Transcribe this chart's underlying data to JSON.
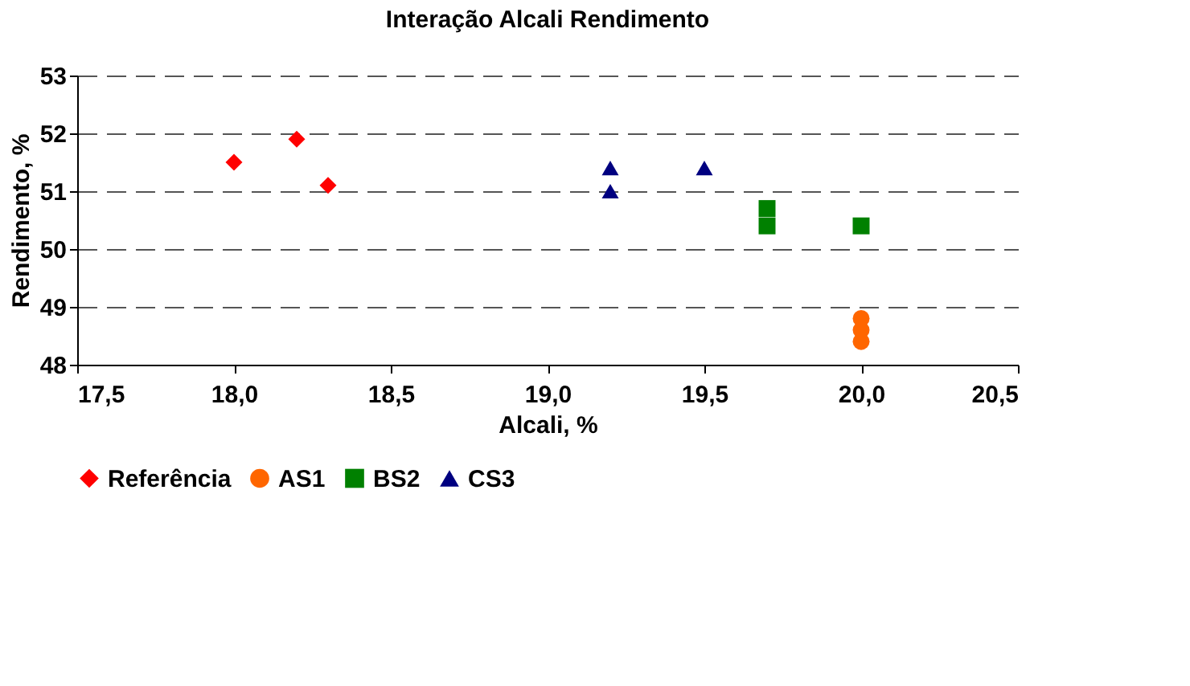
{
  "chart_data": {
    "type": "scatter",
    "title": "Interação Alcali Rendimento",
    "xlabel": "Alcali, %",
    "ylabel": "Rendimento, %",
    "xlim": [
      17.5,
      20.5
    ],
    "xticks": [
      {
        "value": 17.5,
        "label": "17,5"
      },
      {
        "value": 18.0,
        "label": "18,0"
      },
      {
        "value": 18.5,
        "label": "18,5"
      },
      {
        "value": 19.0,
        "label": "19,0"
      },
      {
        "value": 19.5,
        "label": "19,5"
      },
      {
        "value": 20.0,
        "label": "20,0"
      },
      {
        "value": 20.5,
        "label": "20,5"
      }
    ],
    "ylim": [
      48,
      53
    ],
    "yticks": [
      48,
      49,
      50,
      51,
      52,
      53
    ],
    "grid": "y",
    "legend": "bottom",
    "series": [
      {
        "name": "Referência",
        "color": "#ff0000",
        "marker": "diamond",
        "x": [
          18.0,
          18.2,
          18.3
        ],
        "values": [
          51.5,
          51.9,
          51.1
        ]
      },
      {
        "name": "AS1",
        "color": "#ff6600",
        "marker": "circle",
        "x": [
          20.0,
          20.0,
          20.0
        ],
        "values": [
          48.8,
          48.6,
          48.4
        ]
      },
      {
        "name": "BS2",
        "color": "#008000",
        "marker": "square",
        "x": [
          19.7,
          19.7,
          20.0
        ],
        "values": [
          50.7,
          50.4,
          50.4
        ]
      },
      {
        "name": "CS3",
        "color": "#000080",
        "marker": "triangle",
        "x": [
          19.2,
          19.2,
          19.5
        ],
        "values": [
          51.4,
          51.0,
          51.4
        ]
      }
    ]
  }
}
